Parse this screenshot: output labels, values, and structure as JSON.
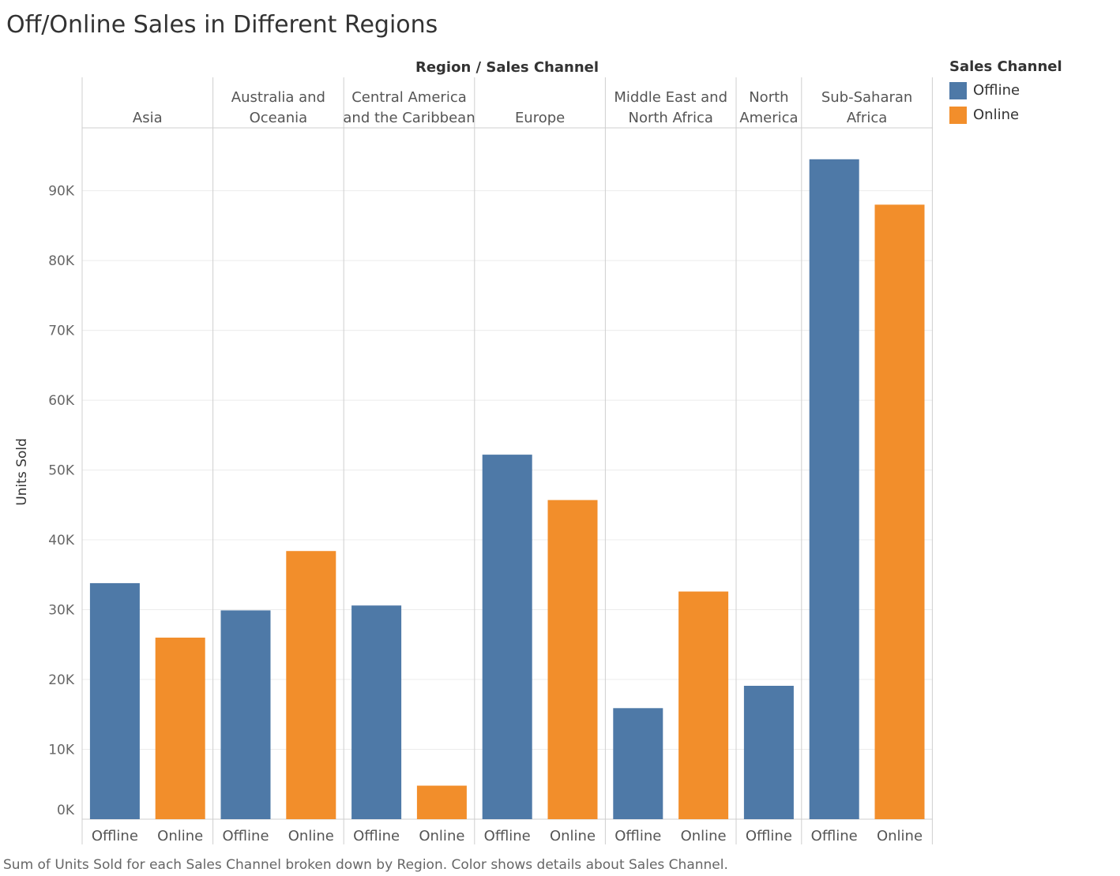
{
  "title": "Off/Online Sales in Different Regions",
  "caption": "Sum of Units Sold for each Sales Channel broken down by Region.  Color shows details about Sales Channel.",
  "legend": {
    "title": "Sales Channel",
    "items": [
      {
        "label": "Offline",
        "color": "#4e79a7"
      },
      {
        "label": "Online",
        "color": "#f28e2b"
      }
    ]
  },
  "chart_data": {
    "type": "bar",
    "title": "Off/Online Sales in Different Regions",
    "column_header": "Region  /  Sales Channel",
    "ylabel": "Units Sold",
    "ylim": [
      0,
      99000
    ],
    "yticks": [
      0,
      10000,
      20000,
      30000,
      40000,
      50000,
      60000,
      70000,
      80000,
      90000
    ],
    "ytick_labels": [
      "0K",
      "10K",
      "20K",
      "30K",
      "40K",
      "50K",
      "60K",
      "70K",
      "80K",
      "90K"
    ],
    "grid": true,
    "legend_position": "top-right",
    "regions": [
      {
        "name": [
          "Asia"
        ],
        "bars": [
          {
            "channel": "Offline",
            "value": 33800
          },
          {
            "channel": "Online",
            "value": 26000
          }
        ]
      },
      {
        "name": [
          "Australia and",
          "Oceania"
        ],
        "bars": [
          {
            "channel": "Offline",
            "value": 29900
          },
          {
            "channel": "Online",
            "value": 38400
          }
        ]
      },
      {
        "name": [
          "Central America",
          "and the Caribbean"
        ],
        "bars": [
          {
            "channel": "Offline",
            "value": 30600
          },
          {
            "channel": "Online",
            "value": 4800
          }
        ]
      },
      {
        "name": [
          "Europe"
        ],
        "bars": [
          {
            "channel": "Offline",
            "value": 52200
          },
          {
            "channel": "Online",
            "value": 45700
          }
        ]
      },
      {
        "name": [
          "Middle East and",
          "North Africa"
        ],
        "bars": [
          {
            "channel": "Offline",
            "value": 15900
          },
          {
            "channel": "Online",
            "value": 32600
          }
        ]
      },
      {
        "name": [
          "North",
          "America"
        ],
        "bars": [
          {
            "channel": "Offline",
            "value": 19100
          }
        ]
      },
      {
        "name": [
          "Sub-Saharan",
          "Africa"
        ],
        "bars": [
          {
            "channel": "Offline",
            "value": 94500
          },
          {
            "channel": "Online",
            "value": 88000
          }
        ]
      }
    ]
  }
}
